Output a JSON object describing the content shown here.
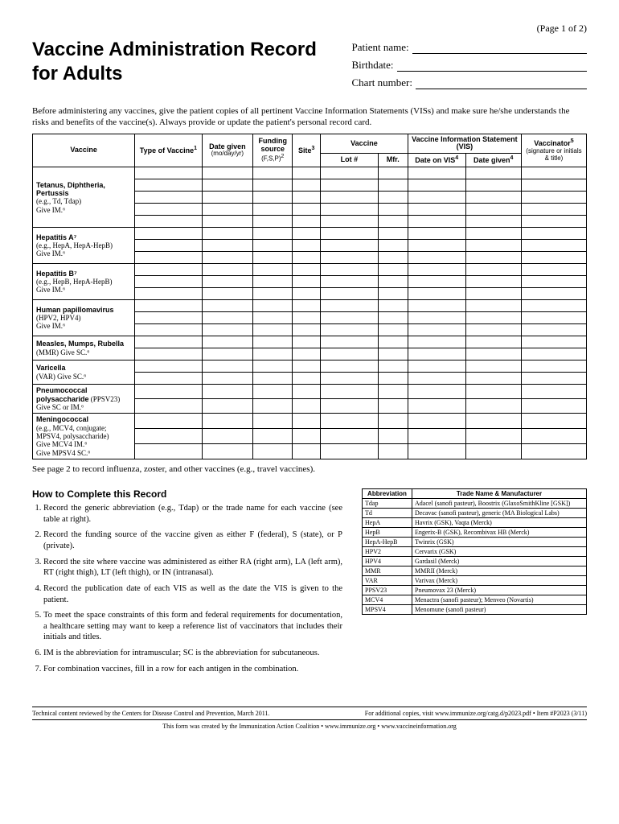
{
  "page_num": "(Page 1 of 2)",
  "title_l1": "Vaccine Administration Record",
  "title_l2": "for Adults",
  "patient_labels": {
    "name": "Patient name:",
    "birth": "Birthdate:",
    "chart": "Chart number:"
  },
  "intro": "Before administering any vaccines, give the patient copies of all pertinent Vaccine Information Statements (VISs) and make sure he/she understands the risks and benefits of the vaccine(s). Always provide or update the patient's personal record card.",
  "cols": {
    "vaccine": "Vaccine",
    "type": "Type of Vaccine",
    "date": "Date given",
    "date_sub": "(mo/day/yr)",
    "fund": "Funding source",
    "fund_sub": "(F,S,P)",
    "site": "Site",
    "vac2": "Vaccine",
    "lot": "Lot #",
    "mfr": "Mfr.",
    "vis": "Vaccine Information Statement (VIS)",
    "vis_date": "Date on VIS",
    "vis_given": "Date given",
    "signer": "Vaccinator",
    "signer_sub": "(signature or initials & title)"
  },
  "vaccines": [
    {
      "title": "Tetanus, Diphtheria, Pertussis",
      "detail": "(e.g., Td, Tdap)\nGive IM.⁶",
      "rows": 5
    },
    {
      "title": "Hepatitis A⁷",
      "detail": "(e.g., HepA, HepA-HepB)\nGive IM.⁶",
      "rows": 3
    },
    {
      "title": "Hepatitis B⁷",
      "detail": "(e.g., HepB, HepA-HepB)\nGive IM.⁶",
      "rows": 3
    },
    {
      "title": "Human papillomavirus",
      "detail": "(HPV2, HPV4)\nGive IM.⁶",
      "rows": 3
    },
    {
      "title": "Measles, Mumps, Rubella",
      "detail": "(MMR) Give SC.⁶",
      "rows": 2
    },
    {
      "title": "Varicella",
      "detail": "(VAR) Give SC.⁶",
      "rows": 2
    },
    {
      "title": "Pneumococcal polysaccharide",
      "detail": "(PPSV23)\nGive SC or IM.⁶",
      "rows": 2,
      "inline": true
    },
    {
      "title": "Meningococcal",
      "detail": "(e.g., MCV4, conjugate; MPSV4, polysaccharide)\nGive MCV4 IM.⁶\nGive MPSV4 SC.⁶",
      "rows": 3
    }
  ],
  "see_note": "See page 2 to record influenza, zoster, and other vaccines (e.g., travel vaccines).",
  "howto_title": "How to Complete this Record",
  "howto": [
    "Record the generic abbreviation (e.g., Tdap) or the trade name for each vaccine (see table at right).",
    "Record the funding source of the vaccine given as either F (federal), S (state), or P (private).",
    "Record the site where vaccine was administered as either RA (right arm), LA (left arm), RT (right thigh), LT (left thigh), or IN (intranasal).",
    "Record the publication date of each VIS as well as the date the VIS is given to the patient.",
    "To meet the space constraints of this form and federal requirements for documentation, a healthcare setting may want to keep a reference list of vaccinators that includes their initials and titles.",
    "IM is the abbreviation for intramuscular; SC is the abbreviation for subcutaneous.",
    "For combination vaccines, fill in a row for each antigen in the combination."
  ],
  "abbr_cols": {
    "a": "Abbreviation",
    "b": "Trade Name & Manufacturer"
  },
  "abbr": [
    [
      "Tdap",
      "Adacel (sanofi pasteur), Boostrix (GlaxoSmithKline [GSK])"
    ],
    [
      "Td",
      "Decavac (sanofi pasteur), generic (MA Biological Labs)"
    ],
    [
      "HepA",
      "Havrix (GSK), Vaqta (Merck)"
    ],
    [
      "HepB",
      "Engerix-B (GSK), Recombivax HB (Merck)"
    ],
    [
      "HepA-HepB",
      "Twinrix (GSK)"
    ],
    [
      "HPV2",
      "Cervarix (GSK)"
    ],
    [
      "HPV4",
      "Gardasil (Merck)"
    ],
    [
      "MMR",
      "MMRII (Merck)"
    ],
    [
      "VAR",
      "Varivax (Merck)"
    ],
    [
      "PPSV23",
      "Pneumovax 23 (Merck)"
    ],
    [
      "MCV4",
      "Menactra (sanofi pasteur); Menveo (Novartis)"
    ],
    [
      "MPSV4",
      "Menomune (sanofi pasteur)"
    ]
  ],
  "footer": {
    "left": "Technical content reviewed by the Centers for Disease Control and Prevention, March 2011.",
    "right": "For additional copies, visit www.immunize.org/catg.d/p2023.pdf  •  Item #P2023 (3/11)",
    "bottom": "This form was created by the Immunization Action Coalition  •  www.immunize.org  •  www.vaccineinformation.org"
  }
}
